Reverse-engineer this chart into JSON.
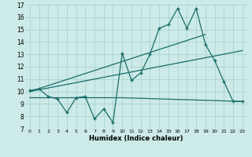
{
  "xlabel": "Humidex (Indice chaleur)",
  "xlim": [
    -0.5,
    23.5
  ],
  "ylim": [
    7,
    17
  ],
  "yticks": [
    7,
    8,
    9,
    10,
    11,
    12,
    13,
    14,
    15,
    16,
    17
  ],
  "xticks": [
    0,
    1,
    2,
    3,
    4,
    5,
    6,
    7,
    8,
    9,
    10,
    11,
    12,
    13,
    14,
    15,
    16,
    17,
    18,
    19,
    20,
    21,
    22,
    23
  ],
  "bg_color": "#cceae7",
  "line_color": "#1a6e6a",
  "grid_color": "#aad4d0",
  "main_line_x": [
    0,
    1,
    2,
    3,
    4,
    5,
    6,
    7,
    8,
    9,
    10,
    11,
    12,
    13,
    14,
    15,
    16,
    17,
    18,
    19,
    20,
    21,
    22,
    23
  ],
  "main_line_y": [
    10.1,
    10.2,
    9.6,
    9.4,
    8.3,
    9.5,
    9.6,
    7.8,
    8.6,
    7.5,
    13.1,
    10.9,
    11.5,
    13.0,
    15.1,
    15.4,
    16.7,
    15.1,
    16.7,
    13.8,
    12.5,
    10.8,
    9.2,
    9.2
  ],
  "flat_line_x": [
    0,
    10,
    23
  ],
  "flat_line_y": [
    9.5,
    9.5,
    9.2
  ],
  "reg_line1_x": [
    0,
    19
  ],
  "reg_line1_y": [
    10.0,
    14.6
  ],
  "reg_line2_x": [
    0,
    23
  ],
  "reg_line2_y": [
    10.0,
    13.3
  ]
}
